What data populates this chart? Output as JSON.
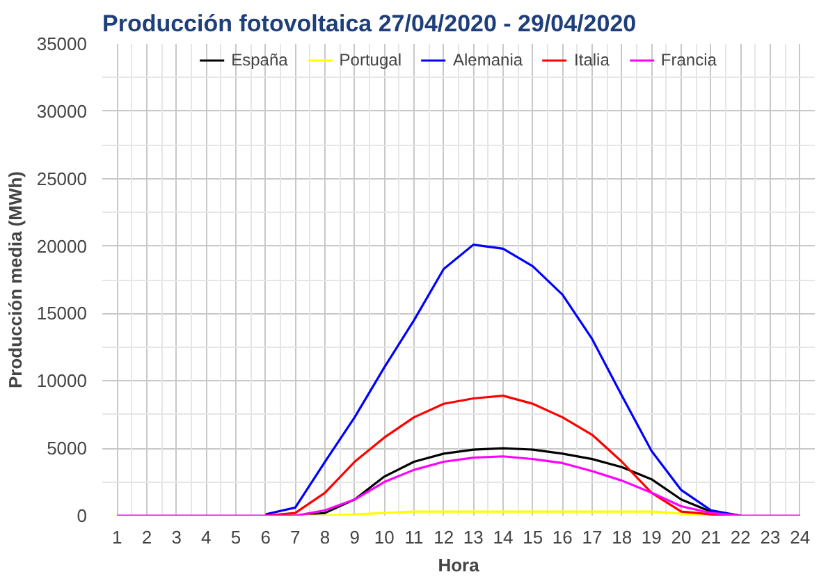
{
  "chart_data": {
    "type": "line",
    "title": "Producción fotovoltaica 27/04/2020 - 29/04/2020",
    "xlabel": "Hora",
    "ylabel": "Producción media (MWh)",
    "x": [
      1,
      2,
      3,
      4,
      5,
      6,
      7,
      8,
      9,
      10,
      11,
      12,
      13,
      14,
      15,
      16,
      17,
      18,
      19,
      20,
      21,
      22,
      23,
      24
    ],
    "series": [
      {
        "name": "España",
        "color": "#000000",
        "values": [
          null,
          null,
          null,
          null,
          null,
          0,
          0,
          200,
          1200,
          2900,
          4000,
          4600,
          4900,
          5000,
          4900,
          4600,
          4200,
          3600,
          2700,
          1200,
          300,
          0,
          null,
          null
        ]
      },
      {
        "name": "Portugal",
        "color": "#ffff00",
        "values": [
          null,
          null,
          null,
          null,
          null,
          0,
          0,
          0,
          100,
          200,
          300,
          300,
          300,
          300,
          300,
          300,
          300,
          300,
          300,
          150,
          0,
          0,
          null,
          null
        ]
      },
      {
        "name": "Alemania",
        "color": "#0000ff",
        "values": [
          null,
          null,
          null,
          null,
          null,
          100,
          600,
          4000,
          7300,
          11000,
          14500,
          18300,
          20100,
          19800,
          18500,
          16400,
          13100,
          8900,
          4800,
          1900,
          400,
          0,
          null,
          null
        ]
      },
      {
        "name": "Italia",
        "color": "#ff0000",
        "values": [
          null,
          null,
          null,
          null,
          null,
          0,
          200,
          1700,
          4000,
          5800,
          7300,
          8300,
          8700,
          8900,
          8300,
          7300,
          6000,
          4000,
          1700,
          300,
          100,
          0,
          null,
          null
        ]
      },
      {
        "name": "Francia",
        "color": "#ff00ff",
        "values": [
          0,
          0,
          0,
          0,
          0,
          0,
          0,
          400,
          1200,
          2500,
          3400,
          4000,
          4300,
          4400,
          4200,
          3900,
          3300,
          2600,
          1700,
          700,
          200,
          0,
          0,
          0
        ]
      }
    ],
    "xlim": [
      0.5,
      24.5
    ],
    "xticks": [
      1,
      2,
      3,
      4,
      5,
      6,
      7,
      8,
      9,
      10,
      11,
      12,
      13,
      14,
      15,
      16,
      17,
      18,
      19,
      20,
      21,
      22,
      23,
      24
    ],
    "ylim": [
      0,
      35000
    ],
    "yticks": [
      0,
      5000,
      10000,
      15000,
      20000,
      25000,
      30000,
      35000
    ],
    "grid": true,
    "legend": "top",
    "marker": "none",
    "line_style": "solid"
  }
}
